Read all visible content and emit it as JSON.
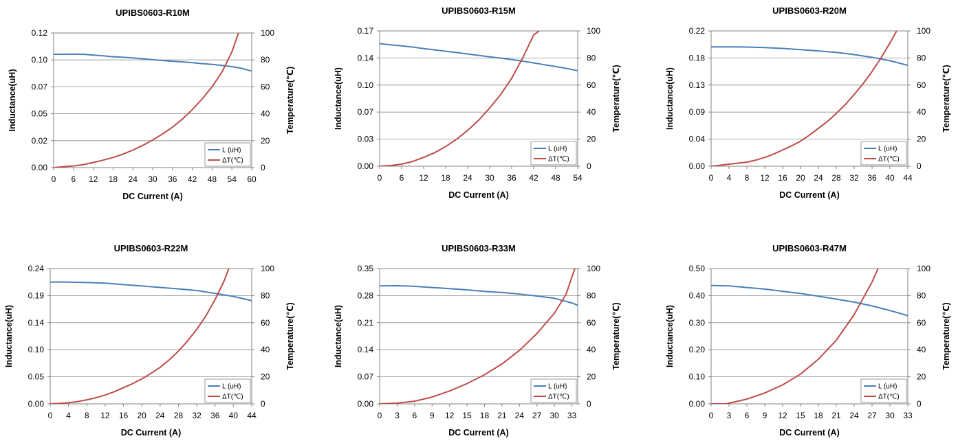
{
  "chart_data": [
    {
      "type": "line",
      "title": "UPIBS0603-R10M",
      "xlabel": "DC Current (A)",
      "ylabel": "Inductance(uH)",
      "y2label": "Temperature(℃)",
      "xlim": [
        0,
        60
      ],
      "ylim": [
        0,
        0.12
      ],
      "y2lim": [
        0,
        100
      ],
      "xticks": [
        "0",
        "6",
        "12",
        "18",
        "24",
        "30",
        "36",
        "42",
        "48",
        "54",
        "60"
      ],
      "yticks": [
        "0.00",
        "0.02",
        "0.05",
        "0.07",
        "0.10",
        "0.12"
      ],
      "y2ticks": [
        "0",
        "20",
        "40",
        "60",
        "80",
        "100"
      ],
      "grid": true,
      "legend_position": "bottom-right",
      "series": [
        {
          "name": "L (uH)",
          "axis": "left",
          "color": "#4a7ebb",
          "x": [
            0,
            3,
            6,
            9,
            12,
            15,
            18,
            21,
            24,
            27,
            30,
            33,
            36,
            39,
            42,
            45,
            48,
            51,
            54,
            57,
            60
          ],
          "y": [
            0.101,
            0.101,
            0.1011,
            0.101,
            0.1003,
            0.0996,
            0.0988,
            0.0983,
            0.0978,
            0.097,
            0.0962,
            0.0955,
            0.0948,
            0.0942,
            0.0935,
            0.0927,
            0.092,
            0.0911,
            0.09,
            0.0885,
            0.086
          ]
        },
        {
          "name": "ΔT(℃)",
          "axis": "right",
          "color": "#be4b48",
          "x": [
            0,
            3,
            6,
            9,
            12,
            15,
            18,
            21,
            24,
            27,
            30,
            33,
            36,
            39,
            42,
            45,
            48,
            51,
            54,
            56
          ],
          "y": [
            0,
            0.6,
            1.2,
            2.2,
            3.8,
            5.5,
            7.5,
            10,
            13,
            16.5,
            20.5,
            25,
            30,
            36,
            43,
            51,
            60,
            71,
            86,
            100
          ]
        }
      ]
    },
    {
      "type": "line",
      "title": "UPIBS0603-R15M",
      "xlabel": "DC Current (A)",
      "ylabel": "Inductance(uH)",
      "y2label": "Temperature(℃)",
      "xlim": [
        0,
        54
      ],
      "ylim": [
        0,
        0.17
      ],
      "y2lim": [
        0,
        100
      ],
      "xticks": [
        "0",
        "6",
        "12",
        "18",
        "24",
        "30",
        "36",
        "42",
        "48",
        "54"
      ],
      "yticks": [
        "0.00",
        "0.03",
        "0.07",
        "0.10",
        "0.14",
        "0.17"
      ],
      "y2ticks": [
        "0",
        "20",
        "40",
        "60",
        "80",
        "100"
      ],
      "grid": true,
      "legend_position": "bottom-right",
      "series": [
        {
          "name": "L (uH)",
          "axis": "left",
          "color": "#4a7ebb",
          "x": [
            0,
            3,
            6,
            9,
            12,
            15,
            18,
            21,
            24,
            27,
            30,
            33,
            36,
            39,
            42,
            45,
            48,
            51,
            54
          ],
          "y": [
            0.154,
            0.1525,
            0.1512,
            0.1497,
            0.1478,
            0.1462,
            0.1445,
            0.1428,
            0.141,
            0.1393,
            0.1375,
            0.1358,
            0.134,
            0.132,
            0.1298,
            0.1275,
            0.1252,
            0.1228,
            0.12
          ]
        },
        {
          "name": "ΔT(℃)",
          "axis": "right",
          "color": "#be4b48",
          "x": [
            0,
            3,
            6,
            9,
            12,
            15,
            18,
            21,
            24,
            27,
            30,
            33,
            36,
            39,
            42,
            43.5
          ],
          "y": [
            0,
            0.5,
            1.5,
            3.5,
            6.5,
            10,
            14.5,
            20,
            26.5,
            34,
            43,
            53,
            65,
            80,
            97,
            100
          ]
        }
      ]
    },
    {
      "type": "line",
      "title": "UPIBS0603-R20M",
      "xlabel": "DC Current (A)",
      "ylabel": "Inductance(uH)",
      "y2label": "Temperature(℃)",
      "xlim": [
        0,
        44
      ],
      "ylim": [
        0,
        0.22
      ],
      "y2lim": [
        0,
        100
      ],
      "xticks": [
        "0",
        "4",
        "8",
        "12",
        "16",
        "20",
        "24",
        "28",
        "32",
        "36",
        "40",
        "44"
      ],
      "yticks": [
        "0.00",
        "0.04",
        "0.09",
        "0.13",
        "0.18",
        "0.22"
      ],
      "y2ticks": [
        "0",
        "20",
        "40",
        "60",
        "80",
        "100"
      ],
      "grid": true,
      "legend_position": "bottom-right",
      "series": [
        {
          "name": "L (uH)",
          "axis": "left",
          "color": "#4a7ebb",
          "x": [
            0,
            4,
            8,
            12,
            16,
            20,
            24,
            28,
            32,
            36,
            40,
            44
          ],
          "y": [
            0.194,
            0.194,
            0.1938,
            0.193,
            0.1915,
            0.1895,
            0.1875,
            0.185,
            0.1815,
            0.177,
            0.1715,
            0.164
          ]
        },
        {
          "name": "ΔT(℃)",
          "axis": "right",
          "color": "#be4b48",
          "x": [
            0,
            2,
            4,
            6,
            8,
            10,
            12,
            14,
            16,
            18,
            20,
            22,
            24,
            26,
            28,
            30,
            32,
            34,
            36,
            38,
            40,
            41.5
          ],
          "y": [
            0,
            0.7,
            1.5,
            2.3,
            3,
            4.5,
            6.5,
            9,
            12,
            15,
            18.5,
            23,
            28,
            33,
            39,
            45.5,
            53,
            61,
            70,
            80,
            91,
            100
          ]
        }
      ]
    },
    {
      "type": "line",
      "title": "UPIBS0603-R22M",
      "xlabel": "DC Current (A)",
      "ylabel": "Inductance(uH)",
      "y2label": "Temperature(℃)",
      "xlim": [
        0,
        44
      ],
      "ylim": [
        0,
        0.24
      ],
      "y2lim": [
        0,
        100
      ],
      "xticks": [
        "0",
        "4",
        "8",
        "12",
        "16",
        "20",
        "24",
        "28",
        "32",
        "36",
        "40",
        "44"
      ],
      "yticks": [
        "0.00",
        "0.05",
        "0.10",
        "0.14",
        "0.19",
        "0.24"
      ],
      "y2ticks": [
        "0",
        "20",
        "40",
        "60",
        "80",
        "100"
      ],
      "grid": true,
      "legend_position": "bottom-right",
      "series": [
        {
          "name": "L (uH)",
          "axis": "left",
          "color": "#4a7ebb",
          "x": [
            0,
            2,
            4,
            8,
            12,
            16,
            20,
            24,
            28,
            32,
            36,
            40,
            44
          ],
          "y": [
            0.216,
            0.2163,
            0.216,
            0.2152,
            0.214,
            0.2115,
            0.209,
            0.2065,
            0.204,
            0.201,
            0.196,
            0.1905,
            0.183
          ]
        },
        {
          "name": "ΔT(℃)",
          "axis": "right",
          "color": "#be4b48",
          "x": [
            0,
            2,
            4,
            6,
            8,
            10,
            12,
            14,
            16,
            18,
            20,
            22,
            24,
            26,
            28,
            30,
            32,
            34,
            36,
            38,
            39
          ],
          "y": [
            0,
            0.3,
            0.8,
            1.7,
            3,
            4.5,
            6.5,
            9,
            12,
            15,
            18.5,
            22.5,
            27,
            32.5,
            39,
            46.5,
            55,
            65,
            77,
            91,
            100
          ]
        }
      ]
    },
    {
      "type": "line",
      "title": "UPIBS0603-R33M",
      "xlabel": "DC Current (A)",
      "ylabel": "Inductance(uH)",
      "y2label": "Temperature(℃)",
      "xlim": [
        0,
        34
      ],
      "ylim": [
        0,
        0.35
      ],
      "y2lim": [
        0,
        100
      ],
      "xticks": [
        "0",
        "3",
        "6",
        "9",
        "12",
        "15",
        "18",
        "21",
        "24",
        "27",
        "30",
        "33"
      ],
      "yticks": [
        "0.00",
        "0.07",
        "0.14",
        "0.21",
        "0.28",
        "0.35"
      ],
      "y2ticks": [
        "0",
        "20",
        "40",
        "60",
        "80",
        "100"
      ],
      "grid": true,
      "legend_position": "bottom-right",
      "series": [
        {
          "name": "L (uH)",
          "axis": "left",
          "color": "#4a7ebb",
          "x": [
            0,
            3,
            6,
            9,
            12,
            15,
            18,
            21,
            24,
            27,
            30,
            33,
            34
          ],
          "y": [
            0.305,
            0.3055,
            0.304,
            0.301,
            0.298,
            0.295,
            0.291,
            0.288,
            0.284,
            0.279,
            0.273,
            0.261,
            0.255
          ]
        },
        {
          "name": "ΔT(℃)",
          "axis": "right",
          "color": "#be4b48",
          "x": [
            0,
            3,
            6,
            9,
            12,
            15,
            18,
            21,
            24,
            27,
            30,
            32,
            33.5
          ],
          "y": [
            0,
            0.5,
            2,
            5,
            9.5,
            15,
            21.5,
            29.5,
            39.5,
            52,
            67,
            81,
            100
          ]
        }
      ]
    },
    {
      "type": "line",
      "title": "UPIBS0603-R47M",
      "xlabel": "DC Current (A)",
      "ylabel": "Inductance(uH)",
      "y2label": "Temperature(℃)",
      "xlim": [
        0,
        33
      ],
      "ylim": [
        0,
        0.5
      ],
      "y2lim": [
        0,
        100
      ],
      "xticks": [
        "0",
        "3",
        "6",
        "9",
        "12",
        "15",
        "18",
        "21",
        "24",
        "27",
        "30",
        "33"
      ],
      "yticks": [
        "0.00",
        "0.10",
        "0.20",
        "0.30",
        "0.40",
        "0.50"
      ],
      "y2ticks": [
        "0",
        "20",
        "40",
        "60",
        "80",
        "100"
      ],
      "grid": true,
      "legend_position": "bottom-right",
      "series": [
        {
          "name": "L (uH)",
          "axis": "left",
          "color": "#4a7ebb",
          "x": [
            0,
            3,
            6,
            9,
            12,
            15,
            18,
            21,
            24,
            27,
            30,
            33
          ],
          "y": [
            0.437,
            0.436,
            0.43,
            0.424,
            0.416,
            0.408,
            0.398,
            0.387,
            0.376,
            0.362,
            0.345,
            0.326
          ]
        },
        {
          "name": "ΔT(℃)",
          "axis": "right",
          "color": "#be4b48",
          "x": [
            0,
            2.5,
            3,
            6,
            9,
            12,
            15,
            18,
            21,
            24,
            27,
            28
          ],
          "y": [
            0,
            0,
            0.5,
            3.5,
            8,
            14,
            22,
            33,
            47,
            66,
            90,
            100
          ]
        }
      ]
    }
  ]
}
